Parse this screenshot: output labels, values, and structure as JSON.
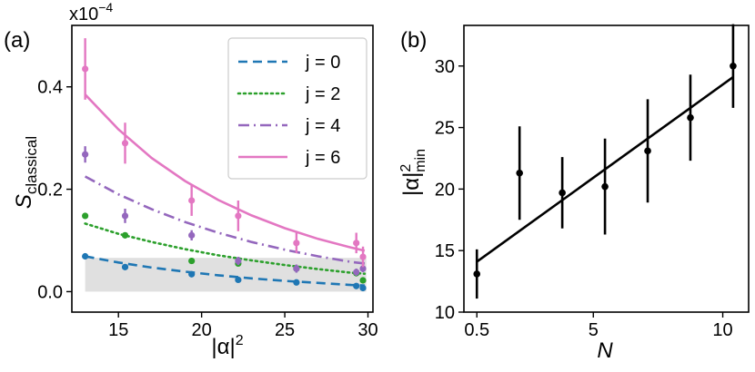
{
  "chart_data": [
    {
      "type": "scatter",
      "panel_label": "(a)",
      "xlabel_base": "|α|",
      "xlabel_sup": "2",
      "ylabel_main": "S",
      "ylabel_sub": "classical",
      "y_multiplier": "x10",
      "y_multiplier_exp": "−4",
      "xlim": [
        12.2,
        30.3
      ],
      "ylim": [
        -0.04,
        0.52
      ],
      "xticks": [
        15,
        20,
        25,
        30
      ],
      "xtick_labels": [
        "15",
        "20",
        "25",
        "30"
      ],
      "yticks": [
        0.0,
        0.2,
        0.4
      ],
      "ytick_labels": [
        "0.0",
        "0.2",
        "0.4"
      ],
      "shaded_band": {
        "x": [
          13.0,
          29.9
        ],
        "y": [
          0.0,
          0.066
        ],
        "color": "#e0e0e0"
      },
      "legend_position": "top-right",
      "series": [
        {
          "name": "j = 0",
          "color": "#1f77b4",
          "line_style": "dashed",
          "points": [
            {
              "x": 13.0,
              "y": 0.069,
              "err": 0.0
            },
            {
              "x": 15.4,
              "y": 0.048,
              "err": 0.0
            },
            {
              "x": 19.4,
              "y": 0.034,
              "err": 0.0
            },
            {
              "x": 22.2,
              "y": 0.023,
              "err": 0.0
            },
            {
              "x": 25.7,
              "y": 0.018,
              "err": 0.0
            },
            {
              "x": 29.3,
              "y": 0.011,
              "err": 0.0
            },
            {
              "x": 29.7,
              "y": 0.007,
              "err": 0.0
            }
          ],
          "fit": {
            "x": [
              13.0,
              15.0,
              17.0,
              19.0,
              21.0,
              23.0,
              25.0,
              27.0,
              29.0,
              29.8
            ],
            "y": [
              0.069,
              0.057,
              0.047,
              0.039,
              0.032,
              0.026,
              0.021,
              0.017,
              0.013,
              0.012
            ]
          }
        },
        {
          "name": "j = 2",
          "color": "#2ca02c",
          "line_style": "dotted",
          "points": [
            {
              "x": 13.0,
              "y": 0.148,
              "err": 0.0
            },
            {
              "x": 15.4,
              "y": 0.11,
              "err": 0.0
            },
            {
              "x": 19.4,
              "y": 0.06,
              "err": 0.0
            },
            {
              "x": 22.2,
              "y": 0.055,
              "err": 0.0
            },
            {
              "x": 25.7,
              "y": 0.045,
              "err": 0.0
            },
            {
              "x": 29.3,
              "y": 0.036,
              "err": 0.0
            },
            {
              "x": 29.7,
              "y": 0.022,
              "err": 0.0
            }
          ],
          "fit": {
            "x": [
              13.0,
              15.0,
              17.0,
              19.0,
              21.0,
              23.0,
              25.0,
              27.0,
              29.0,
              29.8
            ],
            "y": [
              0.133,
              0.113,
              0.097,
              0.083,
              0.071,
              0.061,
              0.052,
              0.044,
              0.037,
              0.035
            ]
          }
        },
        {
          "name": "j = 4",
          "color": "#9467bd",
          "line_style": "dashdot",
          "points": [
            {
              "x": 13.0,
              "y": 0.268,
              "err": 0.016
            },
            {
              "x": 15.4,
              "y": 0.148,
              "err": 0.014
            },
            {
              "x": 19.4,
              "y": 0.11,
              "err": 0.01
            },
            {
              "x": 22.2,
              "y": 0.06,
              "err": 0.008
            },
            {
              "x": 25.7,
              "y": 0.045,
              "err": 0.008
            },
            {
              "x": 29.3,
              "y": 0.038,
              "err": 0.007
            },
            {
              "x": 29.7,
              "y": 0.045,
              "err": 0.007
            }
          ],
          "fit": {
            "x": [
              13.0,
              15.0,
              17.0,
              19.0,
              21.0,
              23.0,
              25.0,
              27.0,
              29.0,
              29.8
            ],
            "y": [
              0.225,
              0.19,
              0.161,
              0.136,
              0.115,
              0.097,
              0.082,
              0.069,
              0.058,
              0.055
            ]
          }
        },
        {
          "name": "j = 6",
          "color": "#e377c2",
          "line_style": "solid",
          "points": [
            {
              "x": 13.0,
              "y": 0.435,
              "err": 0.06
            },
            {
              "x": 15.4,
              "y": 0.29,
              "err": 0.04
            },
            {
              "x": 19.4,
              "y": 0.178,
              "err": 0.03
            },
            {
              "x": 22.2,
              "y": 0.148,
              "err": 0.03
            },
            {
              "x": 25.7,
              "y": 0.095,
              "err": 0.02
            },
            {
              "x": 29.3,
              "y": 0.095,
              "err": 0.02
            },
            {
              "x": 29.7,
              "y": 0.068,
              "err": 0.02
            }
          ],
          "fit": {
            "x": [
              13.0,
              15.0,
              17.0,
              19.0,
              21.0,
              23.0,
              25.0,
              27.0,
              29.0,
              29.8
            ],
            "y": [
              0.385,
              0.317,
              0.261,
              0.216,
              0.179,
              0.149,
              0.124,
              0.103,
              0.086,
              0.08
            ]
          }
        }
      ]
    },
    {
      "type": "scatter",
      "panel_label": "(b)",
      "xlabel": "N",
      "ylabel_base": "|α|",
      "ylabel_sup": "2",
      "ylabel_sub": "min",
      "xlim": [
        0.0,
        11.0
      ],
      "ylim": [
        10.0,
        33.3
      ],
      "xticks": [
        0.5,
        5,
        10
      ],
      "xtick_labels": [
        "0.5",
        "5",
        "10"
      ],
      "yticks": [
        10,
        15,
        20,
        25,
        30
      ],
      "ytick_labels": [
        "10",
        "15",
        "20",
        "25",
        "30"
      ],
      "series": [
        {
          "color": "#000000",
          "points": [
            {
              "x": 0.5,
              "y": 13.1,
              "err": 2.0
            },
            {
              "x": 2.15,
              "y": 21.3,
              "err": 3.8
            },
            {
              "x": 3.8,
              "y": 19.7,
              "err": 2.9
            },
            {
              "x": 5.45,
              "y": 20.2,
              "err": 3.9
            },
            {
              "x": 7.1,
              "y": 23.1,
              "err": 4.2
            },
            {
              "x": 8.75,
              "y": 25.8,
              "err": 3.5
            },
            {
              "x": 10.4,
              "y": 30.0,
              "err": 3.4
            }
          ],
          "fit": {
            "x": [
              0.5,
              10.4
            ],
            "y": [
              14.1,
              29.1
            ]
          }
        }
      ]
    }
  ]
}
